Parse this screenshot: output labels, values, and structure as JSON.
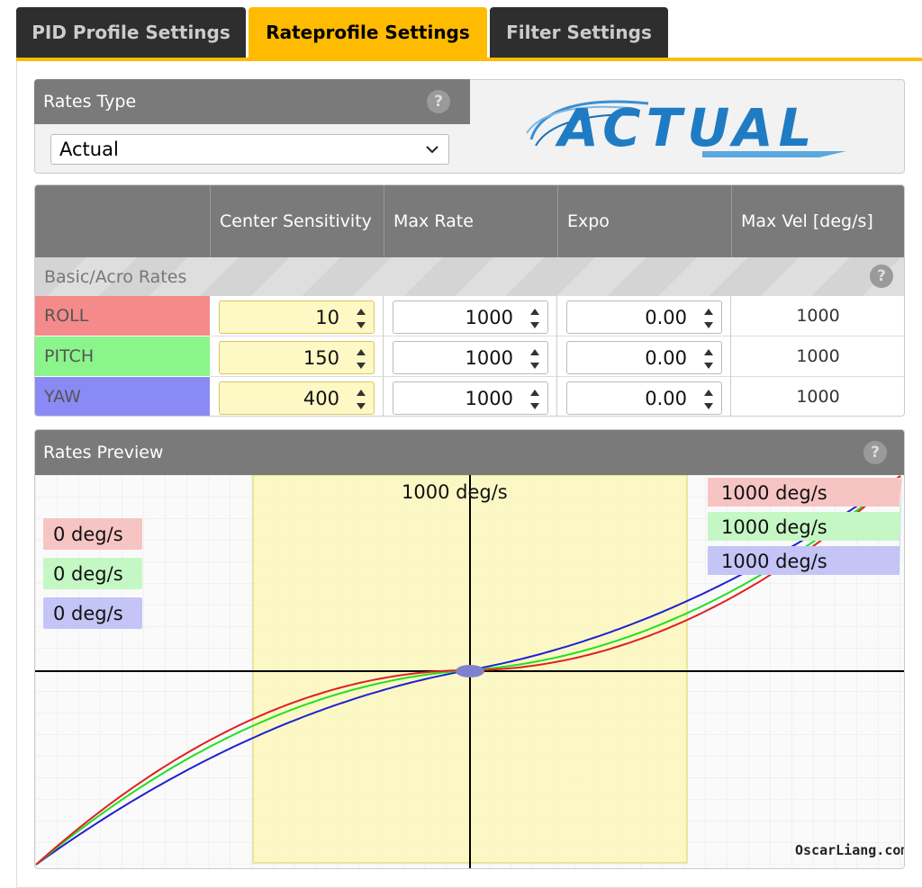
{
  "tabs": [
    "PID Profile Settings",
    "Rateprofile Settings",
    "Filter Settings"
  ],
  "help": "?",
  "rates_type": {
    "label": "Rates Type",
    "selected": "Actual",
    "logo": "ACTUAL"
  },
  "rates_table": {
    "headers": [
      "Center Sensitivity",
      "Max Rate",
      "Expo",
      "Max Vel [deg/s]"
    ],
    "section": "Basic/Acro Rates",
    "rows": [
      {
        "axis": "ROLL",
        "center": "10",
        "max_rate": "1000",
        "expo": "0.00",
        "max_vel": "1000"
      },
      {
        "axis": "PITCH",
        "center": "150",
        "max_rate": "1000",
        "expo": "0.00",
        "max_vel": "1000"
      },
      {
        "axis": "YAW",
        "center": "400",
        "max_rate": "1000",
        "expo": "0.00",
        "max_vel": "1000"
      }
    ]
  },
  "rates_preview": {
    "title": "Rates Preview",
    "center_label": "1000 deg/s",
    "left_labels": [
      "0 deg/s",
      "0 deg/s",
      "0 deg/s"
    ],
    "right_labels": [
      "1000 deg/s",
      "1000 deg/s",
      "1000 deg/s"
    ]
  },
  "watermark": "OscarLiang.com"
}
